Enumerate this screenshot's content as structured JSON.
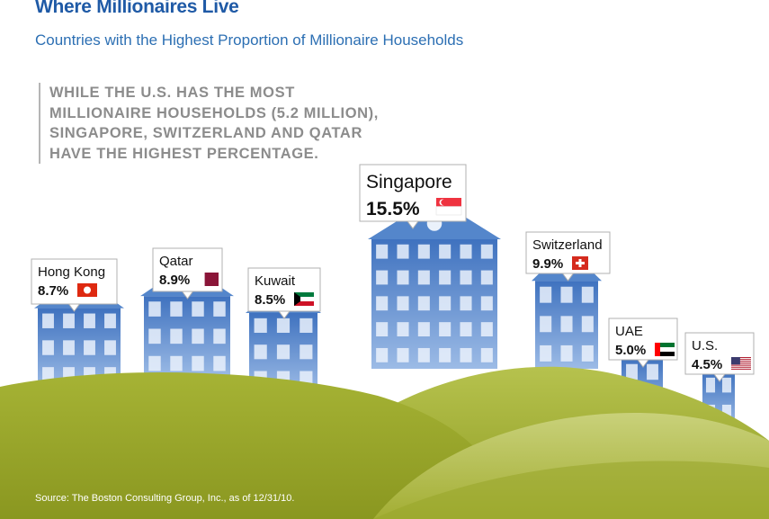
{
  "title": "Where Millionaires Live",
  "subtitle": "Countries with the Highest Proportion of Millionaire Households",
  "callout": {
    "lines": [
      "WHILE THE U.S. HAS THE MOST",
      "MILLIONAIRE HOUSEHOLDS (5.2 MILLION),",
      "SINGAPORE, SWITZERLAND AND QATAR",
      "HAVE THE HIGHEST PERCENTAGE."
    ]
  },
  "source": "Source: The Boston Consulting Group, Inc., as of 12/31/10.",
  "colors": {
    "title": "#1f5aa6",
    "house": "#5b8fd2",
    "hill_light": "#a7b53a",
    "hill_dark": "#8d9a1f"
  },
  "chart_data": {
    "type": "bar",
    "title": "Where Millionaires Live",
    "subtitle": "Countries with the Highest Proportion of Millionaire Households",
    "xlabel": "",
    "ylabel": "",
    "categories": [
      "Hong Kong",
      "Qatar",
      "Kuwait",
      "Singapore",
      "Switzerland",
      "UAE",
      "U.S."
    ],
    "values": [
      8.7,
      8.9,
      8.5,
      15.5,
      9.9,
      5.0,
      4.5
    ],
    "labels": [
      "8.7%",
      "8.9%",
      "8.5%",
      "15.5%",
      "9.9%",
      "5.0%",
      "4.5%"
    ],
    "flags": [
      "hong-kong-flag",
      "qatar-flag",
      "kuwait-flag",
      "singapore-flag",
      "switzerland-flag",
      "uae-flag",
      "us-flag"
    ],
    "legend": false,
    "grid": false
  }
}
